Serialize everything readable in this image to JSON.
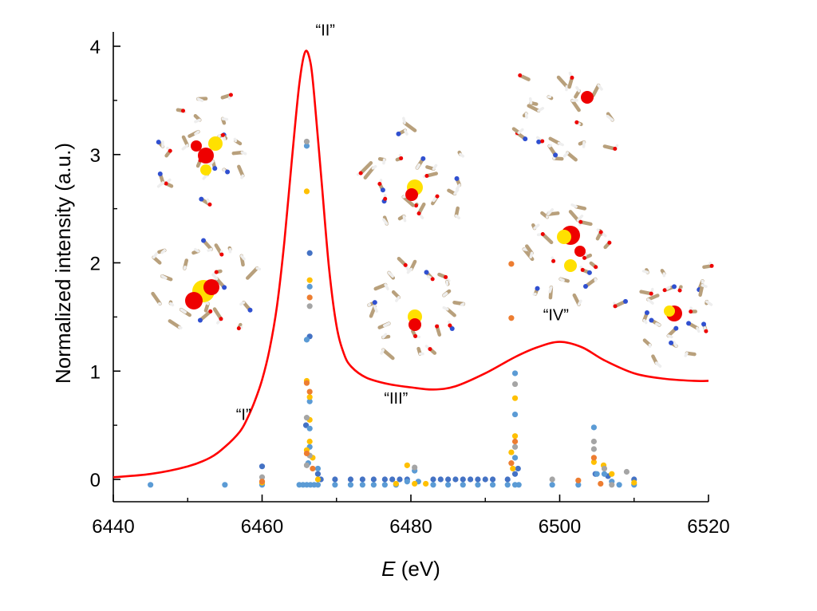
{
  "chart_data": {
    "type": "line+scatter",
    "xlabel_italic": "E",
    "xlabel_rest": " (eV)",
    "ylabel": "Normalized intensity (a.u.)",
    "xlim": [
      6440,
      6520
    ],
    "ylim": [
      -0.2,
      4.1
    ],
    "xticks": [
      6440,
      6460,
      6480,
      6500,
      6520
    ],
    "xtick_labels": [
      "6440",
      "6460",
      "6480",
      "6500",
      "6520"
    ],
    "yticks": [
      0,
      1,
      2,
      3,
      4
    ],
    "ytick_labels": [
      "0",
      "1",
      "2",
      "3",
      "4"
    ],
    "grid": false,
    "curve": {
      "color": "#FF0000",
      "points": [
        [
          6440,
          0.02
        ],
        [
          6445,
          0.05
        ],
        [
          6450,
          0.12
        ],
        [
          6453,
          0.2
        ],
        [
          6455,
          0.3
        ],
        [
          6457,
          0.44
        ],
        [
          6458,
          0.56
        ],
        [
          6459,
          0.72
        ],
        [
          6460,
          0.92
        ],
        [
          6461,
          1.2
        ],
        [
          6462,
          1.6
        ],
        [
          6463,
          2.2
        ],
        [
          6464,
          2.95
        ],
        [
          6465,
          3.65
        ],
        [
          6465.8,
          3.95
        ],
        [
          6466.5,
          3.85
        ],
        [
          6467,
          3.55
        ],
        [
          6468,
          2.75
        ],
        [
          6469,
          1.95
        ],
        [
          6470,
          1.42
        ],
        [
          6471,
          1.16
        ],
        [
          6472,
          1.04
        ],
        [
          6474,
          0.94
        ],
        [
          6477,
          0.88
        ],
        [
          6480,
          0.85
        ],
        [
          6483,
          0.83
        ],
        [
          6486,
          0.86
        ],
        [
          6490,
          0.98
        ],
        [
          6494,
          1.13
        ],
        [
          6497,
          1.22
        ],
        [
          6500,
          1.27
        ],
        [
          6503,
          1.22
        ],
        [
          6506,
          1.1
        ],
        [
          6510,
          0.98
        ],
        [
          6514,
          0.93
        ],
        [
          6518,
          0.91
        ],
        [
          6520,
          0.91
        ]
      ]
    },
    "scatter_series": [
      {
        "color": "#4472C4",
        "points": [
          [
            6460,
            0.12
          ],
          [
            6466.4,
            2.09
          ],
          [
            6466.4,
            1.32
          ],
          [
            6465.9,
            0.5
          ],
          [
            6467.5,
            0.05
          ],
          [
            6467.9,
            0
          ],
          [
            6469.8,
            0
          ],
          [
            6471.9,
            0
          ],
          [
            6473.5,
            0
          ],
          [
            6475,
            0
          ],
          [
            6476.5,
            0
          ],
          [
            6477.5,
            0
          ],
          [
            6478.5,
            0
          ],
          [
            6479.5,
            0
          ],
          [
            6483,
            0
          ],
          [
            6484,
            0
          ],
          [
            6485,
            0
          ],
          [
            6486,
            0
          ],
          [
            6487,
            0
          ],
          [
            6488,
            0
          ],
          [
            6489,
            0
          ],
          [
            6490,
            0
          ],
          [
            6491,
            0
          ],
          [
            6493,
            0
          ],
          [
            6494,
            0.05
          ],
          [
            6494.4,
            0.1
          ],
          [
            6504.8,
            0.05
          ],
          [
            6506.5,
            0.03
          ],
          [
            6510,
            0
          ]
        ]
      },
      {
        "color": "#5B9BD5",
        "points": [
          [
            6445,
            -0.05
          ],
          [
            6455,
            -0.05
          ],
          [
            6460,
            -0.05
          ],
          [
            6465,
            -0.05
          ],
          [
            6465.5,
            -0.05
          ],
          [
            6466,
            -0.05
          ],
          [
            6466.5,
            -0.05
          ],
          [
            6467,
            -0.05
          ],
          [
            6467.5,
            -0.05
          ],
          [
            6466,
            3.08
          ],
          [
            6466.4,
            1.78
          ],
          [
            6466,
            1.29
          ],
          [
            6466.4,
            0.72
          ],
          [
            6466.4,
            0.47
          ],
          [
            6466.4,
            0.3
          ],
          [
            6466.2,
            0.15
          ],
          [
            6467.5,
            0.1
          ],
          [
            6469.8,
            -0.05
          ],
          [
            6471.9,
            -0.05
          ],
          [
            6473.5,
            -0.05
          ],
          [
            6475,
            -0.05
          ],
          [
            6476.5,
            -0.05
          ],
          [
            6478,
            -0.05
          ],
          [
            6479.5,
            -0.02
          ],
          [
            6480.5,
            0.08
          ],
          [
            6481,
            -0.02
          ],
          [
            6483,
            -0.05
          ],
          [
            6485,
            -0.05
          ],
          [
            6487,
            -0.05
          ],
          [
            6489,
            -0.05
          ],
          [
            6491,
            -0.05
          ],
          [
            6493,
            -0.05
          ],
          [
            6494,
            0.98
          ],
          [
            6494,
            0.6
          ],
          [
            6494,
            0.2
          ],
          [
            6494.5,
            -0.05
          ],
          [
            6494,
            -0.05
          ],
          [
            6499,
            -0.05
          ],
          [
            6502.5,
            -0.05
          ],
          [
            6504.6,
            0.48
          ],
          [
            6505,
            0.05
          ],
          [
            6506,
            0.05
          ],
          [
            6507,
            -0.02
          ],
          [
            6508,
            -0.05
          ],
          [
            6510,
            -0.05
          ]
        ]
      },
      {
        "color": "#FFC000",
        "points": [
          [
            6460,
            -0.03
          ],
          [
            6466,
            2.66
          ],
          [
            6466.4,
            1.84
          ],
          [
            6466,
            0.91
          ],
          [
            6466.4,
            0.76
          ],
          [
            6466.4,
            0.55
          ],
          [
            6466.4,
            0.35
          ],
          [
            6466,
            0.27
          ],
          [
            6466.8,
            0.2
          ],
          [
            6467.5,
            0.0
          ],
          [
            6478,
            -0.04
          ],
          [
            6479.5,
            0.13
          ],
          [
            6480.5,
            -0.04
          ],
          [
            6482,
            -0.04
          ],
          [
            6494,
            0.75
          ],
          [
            6494,
            0.4
          ],
          [
            6493.5,
            0.25
          ],
          [
            6493.7,
            0.1
          ],
          [
            6504.6,
            0.16
          ],
          [
            6505.9,
            0.13
          ],
          [
            6507,
            0.05
          ],
          [
            6510,
            -0.03
          ]
        ]
      },
      {
        "color": "#A5A5A5",
        "points": [
          [
            6460,
            0.02
          ],
          [
            6466,
            3.12
          ],
          [
            6466.4,
            1.6
          ],
          [
            6466,
            0.57
          ],
          [
            6466.4,
            0.22
          ],
          [
            6466,
            0.13
          ],
          [
            6480.5,
            0.11
          ],
          [
            6494,
            0.88
          ],
          [
            6494,
            0.3
          ],
          [
            6499,
            0
          ],
          [
            6504.6,
            0.35
          ],
          [
            6504.6,
            0.28
          ],
          [
            6506,
            0.1
          ],
          [
            6507,
            -0.05
          ],
          [
            6509,
            0.07
          ]
        ]
      },
      {
        "color": "#ED7D31",
        "points": [
          [
            6460,
            -0.02
          ],
          [
            6466.4,
            1.68
          ],
          [
            6466,
            0.89
          ],
          [
            6466.4,
            0.81
          ],
          [
            6466,
            0.24
          ],
          [
            6466.8,
            0.1
          ],
          [
            6493.5,
            1.99
          ],
          [
            6493.5,
            1.49
          ],
          [
            6494,
            0.35
          ],
          [
            6493.5,
            0.15
          ],
          [
            6502.5,
            -0.01
          ],
          [
            6504.6,
            0.2
          ],
          [
            6505.5,
            -0.04
          ]
        ]
      }
    ],
    "annotations": [
      {
        "text": "“I”",
        "x": 6457.5,
        "y": 0.55
      },
      {
        "text": "“II”",
        "x": 6468.5,
        "y": 4.1
      },
      {
        "text": "“III”",
        "x": 6478,
        "y": 0.7
      },
      {
        "text": "“IV”",
        "x": 6499.5,
        "y": 1.47
      }
    ],
    "insets": [
      "molecular-orbital-structure"
    ]
  }
}
